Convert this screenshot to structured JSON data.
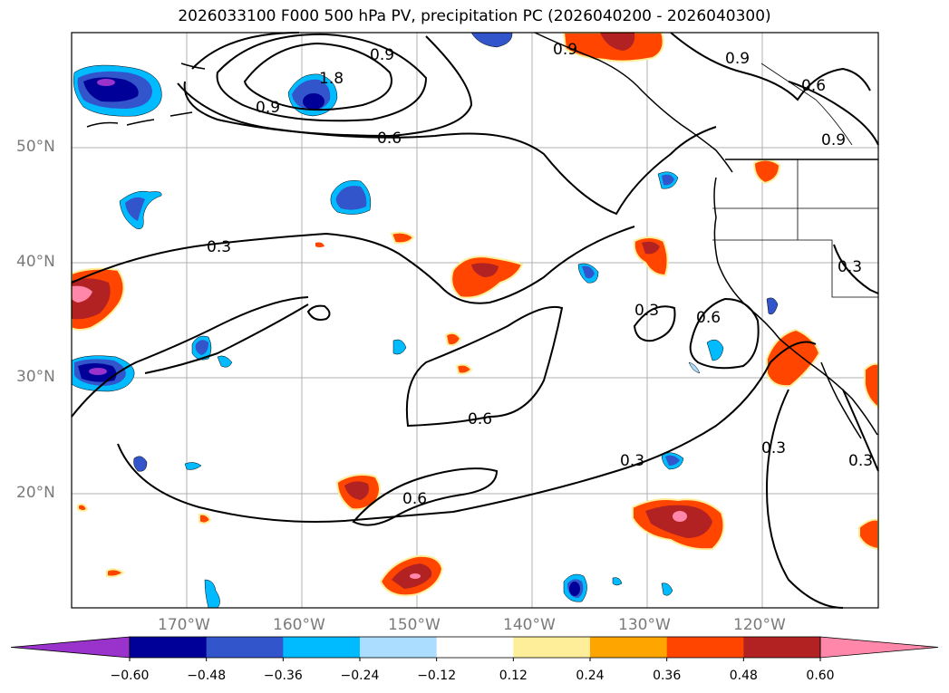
{
  "title": "2026033100 F000 500 hPa PV, precipitation PC (2026040200 - 2026040300)",
  "latitude_labels": [
    "50°N",
    "40°N",
    "30°N",
    "20°N"
  ],
  "longitude_labels": [
    "170°W",
    "160°W",
    "150°W",
    "140°W",
    "130°W",
    "120°W"
  ],
  "colorbar": {
    "ticks": [
      "−0.60",
      "−0.48",
      "−0.36",
      "−0.24",
      "−0.12",
      "0.12",
      "0.24",
      "0.36",
      "0.48",
      "0.60"
    ],
    "colors": [
      "#9933cc",
      "#000099",
      "#3355cc",
      "#00bbff",
      "#aaddff",
      "#ffffff",
      "#ffee99",
      "#ffa500",
      "#ff4500",
      "#b22222",
      "#ff88aa"
    ]
  },
  "contour_labels": [
    "0.9",
    "1.8",
    "0.9",
    "0.6",
    "0.6",
    "0.9",
    "0.3",
    "0.3",
    "0.6",
    "0.6",
    "0.3",
    "0.6",
    "0.3",
    "0.3",
    "0.3",
    "0.9",
    "0.9"
  ],
  "fill_colors": {
    "pos_light": "#ffee99",
    "pos_orange": "#ff4500",
    "pos_dark": "#b22222",
    "pos_pink": "#ff88aa",
    "neg_light": "#aaddff",
    "neg_cyan": "#00bbff",
    "neg_blue": "#3355cc",
    "neg_dark": "#000099",
    "neg_purple": "#9933cc"
  }
}
